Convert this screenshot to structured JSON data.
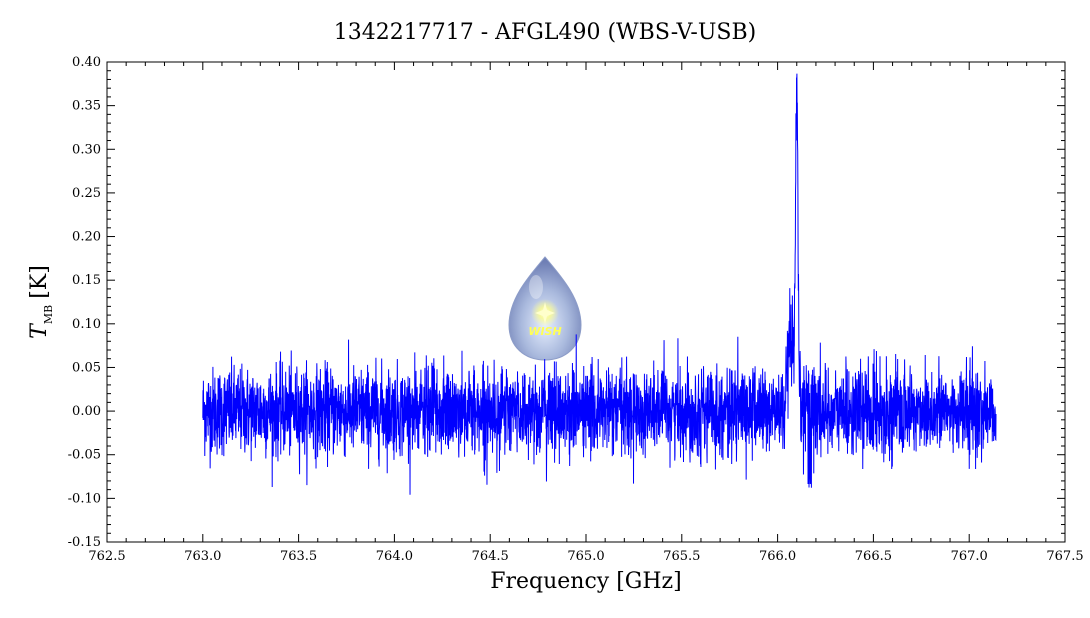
{
  "chart_data": {
    "type": "line",
    "title": "1342217717 - AFGL490 (WBS-V-USB)",
    "xlabel": "Frequency [GHz]",
    "ylabel_main": "T",
    "ylabel_sub": "MB",
    "ylabel_unit": "[K]",
    "xlim": [
      762.5,
      767.5
    ],
    "ylim": [
      -0.15,
      0.4
    ],
    "xticks": [
      "762.5",
      "763.0",
      "763.5",
      "764.0",
      "764.5",
      "765.0",
      "765.5",
      "766.0",
      "766.5",
      "767.0",
      "767.5"
    ],
    "yticks": [
      "-0.15",
      "-0.10",
      "-0.05",
      "0.00",
      "0.05",
      "0.10",
      "0.15",
      "0.20",
      "0.25",
      "0.30",
      "0.35",
      "0.40"
    ],
    "grid": false,
    "series": [
      {
        "color": "#0000ff",
        "x_range": [
          763.0,
          767.14
        ],
        "noise_rms": 0.025,
        "noise_envelope": [
          -0.1,
          0.1
        ],
        "line_center": 766.1,
        "line_peak": 0.38,
        "line_secondary_peak": 0.31,
        "line_min": -0.1,
        "notes_points": [
          {
            "x": 763.0,
            "y": 0.0
          },
          {
            "x": 766.06,
            "y": 0.1
          },
          {
            "x": 766.09,
            "y": 0.31
          },
          {
            "x": 766.1,
            "y": 0.38
          },
          {
            "x": 766.12,
            "y": 0.15
          },
          {
            "x": 766.16,
            "y": -0.1
          },
          {
            "x": 767.14,
            "y": 0.0
          }
        ]
      }
    ]
  },
  "logo": {
    "text": "WISH",
    "glow": "#ffff55",
    "body": "#a9b9dd"
  }
}
